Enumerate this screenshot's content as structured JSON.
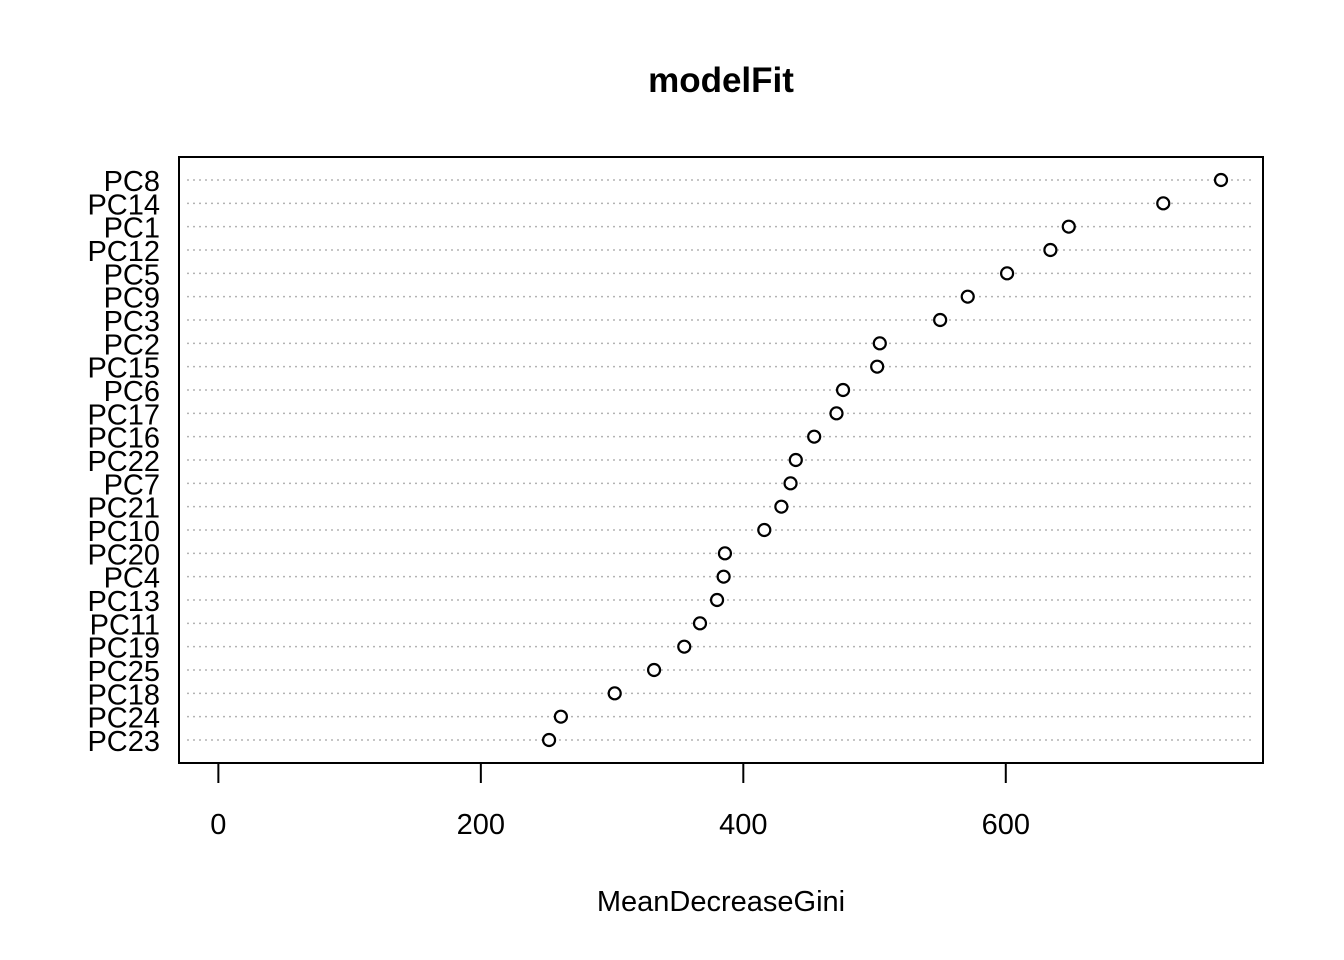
{
  "chart_data": {
    "type": "scatter",
    "title": "modelFit",
    "xlabel": "MeanDecreaseGini",
    "ylabel": "",
    "xlim": [
      -30,
      796
    ],
    "xticks": [
      0,
      200,
      400,
      600
    ],
    "grid": "horizontal dotted lines",
    "marker": "open circle",
    "categories": [
      "PC8",
      "PC14",
      "PC1",
      "PC12",
      "PC5",
      "PC9",
      "PC3",
      "PC2",
      "PC15",
      "PC6",
      "PC17",
      "PC16",
      "PC22",
      "PC7",
      "PC21",
      "PC10",
      "PC20",
      "PC4",
      "PC13",
      "PC11",
      "PC19",
      "PC25",
      "PC18",
      "PC24",
      "PC23"
    ],
    "values": [
      764,
      720,
      648,
      634,
      601,
      571,
      550,
      504,
      502,
      476,
      471,
      454,
      440,
      436,
      429,
      416,
      386,
      385,
      380,
      367,
      355,
      332,
      302,
      261,
      252
    ]
  }
}
